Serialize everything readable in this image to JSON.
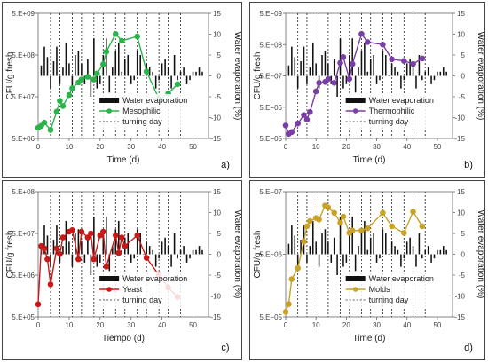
{
  "chart_data": [
    {
      "type": "line",
      "panel_label": "a)",
      "xlabel": "Time (d)",
      "ylabel": "CFU/g  fresh",
      "y2label": "Water  evaporation  (%)",
      "xlim": [
        0,
        55
      ],
      "x_ticks": [
        "0",
        "10",
        "20",
        "30",
        "40",
        "50"
      ],
      "y_log_ticks": [
        "5.E+06",
        "5.E+07",
        "5.E+08",
        "5.E+09"
      ],
      "y2_ticks": [
        "15",
        "10",
        "5",
        "0",
        "-5",
        "-10",
        "-15"
      ],
      "y2lim": [
        -15,
        15
      ],
      "grid": false,
      "legend_position": "bottom-center",
      "legend": [
        "Water  evaporation",
        "Mesophilic",
        "turning day"
      ],
      "series_color": "#2ab34a",
      "turning_days": [
        4,
        7,
        11,
        14,
        18,
        21,
        25,
        28,
        32,
        35,
        39,
        42,
        46
      ],
      "water_evaporation": {
        "x": [
          1,
          2,
          3,
          4,
          5,
          6,
          7,
          8,
          9,
          10,
          11,
          12,
          13,
          14,
          15,
          16,
          17,
          18,
          19,
          20,
          21,
          22,
          23,
          24,
          25,
          26,
          27,
          28,
          29,
          30,
          31,
          32,
          33,
          34,
          35,
          36,
          37,
          38,
          39,
          40,
          41,
          42,
          43,
          44,
          45,
          46,
          47,
          48,
          49,
          50,
          51,
          52,
          53
        ],
        "values": [
          2.5,
          7,
          4.5,
          -3,
          3.5,
          7,
          -2,
          2,
          8,
          3,
          -3,
          5,
          6,
          3,
          -2,
          4,
          -5,
          9,
          -3,
          -2,
          5,
          9,
          -4,
          2,
          6,
          8,
          1,
          4,
          5,
          -2,
          -1,
          6,
          5,
          0,
          3,
          2,
          1,
          -3,
          -1,
          3,
          4,
          2,
          -3,
          5,
          -1,
          1,
          2,
          -2,
          -1,
          1,
          1,
          2,
          1
        ]
      },
      "series": [
        {
          "name": "Mesophilic",
          "x": [
            0,
            1,
            2,
            4,
            6,
            7,
            8,
            10,
            11,
            13,
            14,
            16,
            18,
            19,
            21,
            22,
            25,
            27,
            32,
            35,
            39,
            42,
            45
          ],
          "values": [
            9000000.0,
            10000000.0,
            12000000.0,
            8000000.0,
            22000000.0,
            40000000.0,
            30000000.0,
            55000000.0,
            80000000.0,
            110000000.0,
            130000000.0,
            150000000.0,
            130000000.0,
            180000000.0,
            300000000.0,
            600000000.0,
            1600000000.0,
            1100000000.0,
            1400000000.0,
            200000000.0,
            45000000.0,
            60000000.0,
            100000000.0
          ]
        }
      ]
    },
    {
      "type": "line",
      "panel_label": "b)",
      "xlabel": "Time (d)",
      "ylabel": "CFU/g  fresh",
      "y2label": "Water  evaporation  (%)",
      "xlim": [
        0,
        55
      ],
      "x_ticks": [
        "0",
        "10",
        "20",
        "30",
        "40",
        "50"
      ],
      "y_log_ticks": [
        "5.E+05",
        "5.E+06",
        "5.E+07",
        "5.E+08",
        "5.E+09"
      ],
      "y2_ticks": [
        "15",
        "10",
        "5",
        "0",
        "-5",
        "-10",
        "-15"
      ],
      "y2lim": [
        -15,
        15
      ],
      "grid": false,
      "legend_position": "bottom-center",
      "legend": [
        "Water  evaporation",
        "Thermophilic",
        "turning day"
      ],
      "series_color": "#7a3fa6",
      "turning_days": [
        4,
        7,
        11,
        14,
        18,
        21,
        25,
        28,
        32,
        35,
        39,
        42,
        46
      ],
      "water_evaporation": {
        "x": [
          1,
          2,
          3,
          4,
          5,
          6,
          7,
          8,
          9,
          10,
          11,
          12,
          13,
          14,
          15,
          16,
          17,
          18,
          19,
          20,
          21,
          22,
          23,
          24,
          25,
          26,
          27,
          28,
          29,
          30,
          31,
          32,
          33,
          34,
          35,
          36,
          37,
          38,
          39,
          40,
          41,
          42,
          43,
          44,
          45,
          46,
          47,
          48,
          49,
          50,
          51,
          52,
          53
        ],
        "values": [
          2.5,
          7,
          4.5,
          -3,
          3.5,
          7,
          -2,
          2,
          8,
          3,
          -3,
          5,
          6,
          3,
          -2,
          4,
          -5,
          9,
          -3,
          -2,
          5,
          9,
          -4,
          2,
          6,
          8,
          1,
          4,
          5,
          -2,
          -1,
          6,
          5,
          0,
          3,
          2,
          1,
          -3,
          -1,
          3,
          4,
          2,
          -3,
          5,
          -1,
          1,
          2,
          -2,
          -1,
          1,
          1,
          2,
          1
        ]
      },
      "series": [
        {
          "name": "Thermophilic",
          "x": [
            0,
            1,
            2,
            4,
            6,
            7,
            8,
            10,
            11,
            13,
            14,
            16,
            18,
            19,
            21,
            22,
            25,
            27,
            32,
            35,
            39,
            42,
            45
          ],
          "values": [
            1300000.0,
            700000.0,
            800000.0,
            1500000.0,
            2800000.0,
            2000000.0,
            3500000.0,
            16000000.0,
            30000000.0,
            32000000.0,
            40000000.0,
            30000000.0,
            130000000.0,
            200000000.0,
            40000000.0,
            120000000.0,
            1100000000.0,
            600000000.0,
            500000000.0,
            170000000.0,
            150000000.0,
            120000000.0,
            180000000.0
          ]
        }
      ]
    },
    {
      "type": "line",
      "panel_label": "c)",
      "xlabel": "Tiempo (d)",
      "ylabel": "CFU/g  fresh",
      "y2label": "Water  evaporation  (%)",
      "xlim": [
        0,
        55
      ],
      "x_ticks": [
        "0",
        "10",
        "20",
        "30",
        "40",
        "50"
      ],
      "y_log_ticks": [
        "5.E+05",
        "5.E+06",
        "5.E+07",
        "5.E+08"
      ],
      "y2_ticks": [
        "15",
        "10",
        "5",
        "0",
        "-5",
        "-10",
        "-15"
      ],
      "y2lim": [
        -15,
        15
      ],
      "grid": false,
      "legend_position": "bottom-center",
      "legend": [
        "Water  evaporation",
        "Yeast",
        "turning day"
      ],
      "series_color": "#c81818",
      "turning_days": [
        4,
        7,
        11,
        14,
        18,
        21,
        25,
        28,
        32,
        35,
        39,
        42,
        46
      ],
      "water_evaporation": {
        "x": [
          1,
          2,
          3,
          4,
          5,
          6,
          7,
          8,
          9,
          10,
          11,
          12,
          13,
          14,
          15,
          16,
          17,
          18,
          19,
          20,
          21,
          22,
          23,
          24,
          25,
          26,
          27,
          28,
          29,
          30,
          31,
          32,
          33,
          34,
          35,
          36,
          37,
          38,
          39,
          40,
          41,
          42,
          43,
          44,
          45,
          46,
          47,
          48,
          49,
          50,
          51,
          52,
          53
        ],
        "values": [
          2.5,
          7,
          4.5,
          -3,
          3.5,
          7,
          -2,
          2,
          8,
          3,
          -3,
          5,
          6,
          3,
          -2,
          4,
          -5,
          9,
          -3,
          -2,
          5,
          9,
          -4,
          2,
          6,
          8,
          1,
          4,
          5,
          -2,
          -1,
          6,
          5,
          0,
          3,
          2,
          1,
          -3,
          -1,
          3,
          4,
          2,
          -3,
          5,
          -1,
          1,
          2,
          -2,
          -1,
          1,
          1,
          2,
          1
        ]
      },
      "series": [
        {
          "name": "Yeast",
          "x": [
            0,
            1,
            2,
            3,
            4,
            6,
            7,
            8,
            10,
            11,
            13,
            14,
            16,
            17,
            18,
            20,
            21,
            22,
            25,
            26,
            27,
            28,
            32,
            35,
            39,
            42,
            45
          ],
          "values": [
            1000000.0,
            25000000.0,
            22000000.0,
            12000000.0,
            3000000.0,
            22000000.0,
            16000000.0,
            40000000.0,
            55000000.0,
            60000000.0,
            12000000.0,
            55000000.0,
            40000000.0,
            50000000.0,
            12000000.0,
            45000000.0,
            55000000.0,
            8000000.0,
            45000000.0,
            17000000.0,
            40000000.0,
            25000000.0,
            45000000.0,
            13000000.0,
            5000000.0,
            2500000.0,
            1500000.0
          ]
        }
      ]
    },
    {
      "type": "line",
      "panel_label": "d)",
      "xlabel": "Time (d)",
      "ylabel": "CFU/g  fresh",
      "y2label": "Water  evaporation  (%)",
      "xlim": [
        0,
        55
      ],
      "x_ticks": [
        "0",
        "10",
        "20",
        "30",
        "40",
        "50"
      ],
      "y_log_ticks": [
        "5.E+05",
        "5.E+06",
        "5.E+07"
      ],
      "y2_ticks": [
        "15",
        "10",
        "5",
        "0",
        "-5",
        "-10",
        "-15"
      ],
      "y2lim": [
        -15,
        15
      ],
      "grid": false,
      "legend_position": "bottom-center",
      "legend": [
        "Water  evaporation",
        "Molds",
        "turning day"
      ],
      "series_color": "#c9a227",
      "turning_days": [
        4,
        7,
        11,
        14,
        18,
        21,
        25,
        28,
        32,
        35,
        39,
        42,
        46
      ],
      "water_evaporation": {
        "x": [
          1,
          2,
          3,
          4,
          5,
          6,
          7,
          8,
          9,
          10,
          11,
          12,
          13,
          14,
          15,
          16,
          17,
          18,
          19,
          20,
          21,
          22,
          23,
          24,
          25,
          26,
          27,
          28,
          29,
          30,
          31,
          32,
          33,
          34,
          35,
          36,
          37,
          38,
          39,
          40,
          41,
          42,
          43,
          44,
          45,
          46,
          47,
          48,
          49,
          50,
          51,
          52,
          53
        ],
        "values": [
          2.5,
          7,
          4.5,
          -3,
          3.5,
          7,
          -2,
          2,
          8,
          3,
          -3,
          5,
          6,
          3,
          -2,
          4,
          -5,
          9,
          -3,
          -2,
          5,
          9,
          -4,
          2,
          6,
          8,
          1,
          4,
          5,
          -2,
          -1,
          6,
          5,
          0,
          3,
          2,
          1,
          -3,
          -1,
          3,
          4,
          2,
          -3,
          5,
          -1,
          1,
          2,
          -2,
          -1,
          1,
          1,
          2,
          1
        ]
      },
      "series": [
        {
          "name": "Molds",
          "x": [
            0,
            1,
            2,
            4,
            6,
            7,
            8,
            10,
            11,
            13,
            14,
            16,
            18,
            19,
            21,
            22,
            25,
            27,
            32,
            35,
            39,
            42,
            45
          ],
          "values": [
            600000.0,
            800000.0,
            2000000.0,
            3000000.0,
            8000000.0,
            14000000.0,
            17000000.0,
            19000000.0,
            18000000.0,
            30000000.0,
            28000000.0,
            23000000.0,
            16000000.0,
            20000000.0,
            11000000.0,
            12000000.0,
            12000000.0,
            13000000.0,
            23000000.0,
            14000000.0,
            11000000.0,
            24000000.0,
            14000000.0
          ]
        }
      ]
    }
  ]
}
